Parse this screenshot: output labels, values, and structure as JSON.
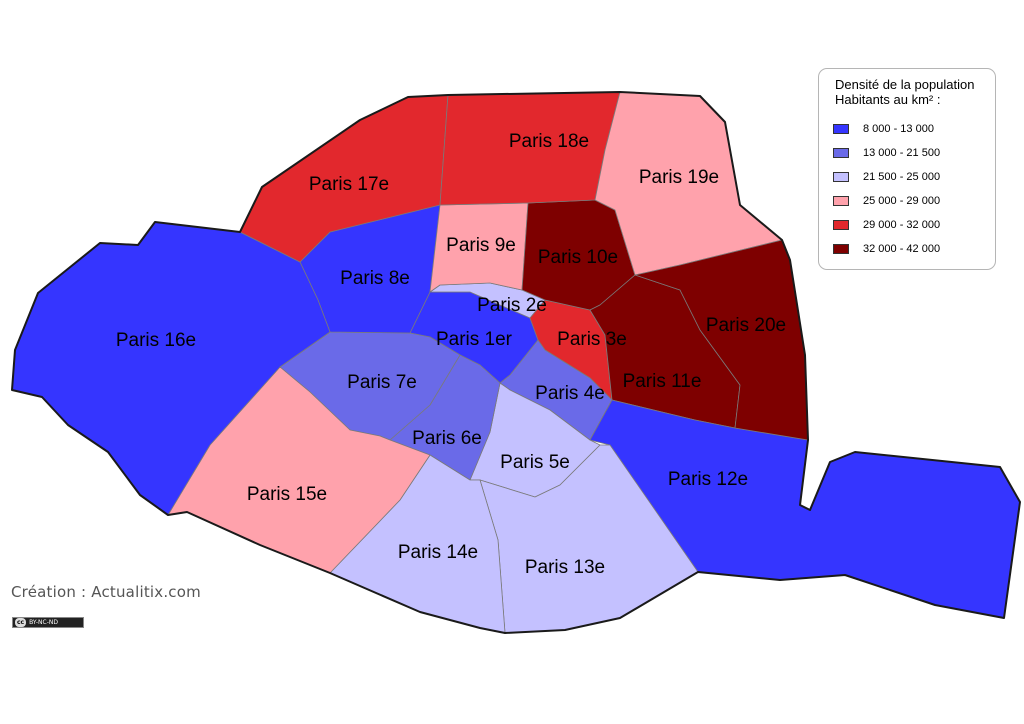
{
  "legend": {
    "title_line1": "Densité de la population",
    "title_line2": "Habitants au km² :",
    "classes": [
      {
        "label": "8 000 - 13 000",
        "color": "#3535ff"
      },
      {
        "label": "13 000 - 21 500",
        "color": "#6a6ae8"
      },
      {
        "label": "21 500 - 25 000",
        "color": "#c4c1ff"
      },
      {
        "label": "25 000 - 29 000",
        "color": "#ffa2ac"
      },
      {
        "label": "29 000 - 32 000",
        "color": "#e2282d"
      },
      {
        "label": "32 000 - 42 000",
        "color": "#7e0000"
      }
    ]
  },
  "districts": [
    {
      "label": "Paris 1er",
      "class": 0
    },
    {
      "label": "Paris 2e",
      "class": 2
    },
    {
      "label": "Paris 3e",
      "class": 4
    },
    {
      "label": "Paris 4e",
      "class": 1
    },
    {
      "label": "Paris 5e",
      "class": 2
    },
    {
      "label": "Paris 6e",
      "class": 1
    },
    {
      "label": "Paris 7e",
      "class": 1
    },
    {
      "label": "Paris 8e",
      "class": 0
    },
    {
      "label": "Paris 9e",
      "class": 3
    },
    {
      "label": "Paris 10e",
      "class": 5
    },
    {
      "label": "Paris 11e",
      "class": 5
    },
    {
      "label": "Paris 12e",
      "class": 0
    },
    {
      "label": "Paris 13e",
      "class": 2
    },
    {
      "label": "Paris 14e",
      "class": 2
    },
    {
      "label": "Paris 15e",
      "class": 3
    },
    {
      "label": "Paris 16e",
      "class": 0
    },
    {
      "label": "Paris 17e",
      "class": 4
    },
    {
      "label": "Paris 18e",
      "class": 4
    },
    {
      "label": "Paris 19e",
      "class": 3
    },
    {
      "label": "Paris 20e",
      "class": 5
    }
  ],
  "credit": "Création : Actualitix.com",
  "license": {
    "cc": "cc",
    "text": "BY-NC-ND"
  }
}
